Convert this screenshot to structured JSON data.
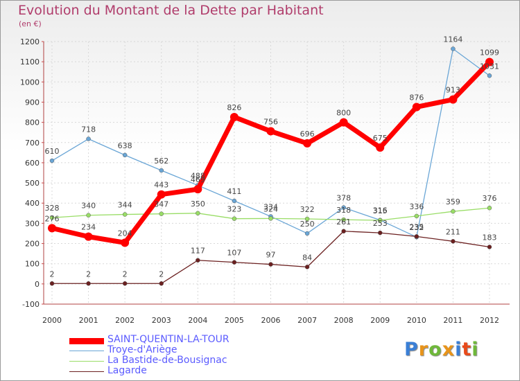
{
  "title": "Evolution du Montant de la Dette par Habitant",
  "subtitle": "(en €)",
  "logo": "Proxiti",
  "chart_data": {
    "type": "line",
    "x": [
      "2000",
      "2001",
      "2002",
      "2003",
      "2004",
      "2005",
      "2006",
      "2007",
      "2008",
      "2009",
      "2010",
      "2011",
      "2012"
    ],
    "ylim": [
      -100,
      1200
    ],
    "yticks": [
      -100,
      0,
      100,
      200,
      300,
      400,
      500,
      600,
      700,
      800,
      900,
      1000,
      1100,
      1200
    ],
    "grid": true,
    "legend_position": "bottom-left",
    "series": [
      {
        "name": "SAINT-QUENTIN-LA-TOUR",
        "color": "#ff0000",
        "values": [
          276,
          234,
          204,
          443,
          469,
          826,
          756,
          696,
          800,
          675,
          876,
          913,
          1099
        ]
      },
      {
        "name": "Troye-d'Ariège",
        "color": "#6aa6d6",
        "values": [
          610,
          718,
          638,
          562,
          488,
          411,
          334,
          250,
          378,
          316,
          232,
          1164,
          1031
        ]
      },
      {
        "name": "La Bastide-de-Bousignac",
        "color": "#99dd66",
        "values": [
          328,
          340,
          344,
          347,
          350,
          323,
          324,
          322,
          318,
          315,
          336,
          359,
          376
        ]
      },
      {
        "name": "Lagarde",
        "color": "#6b2020",
        "values": [
          2,
          2,
          2,
          2,
          117,
          107,
          97,
          84,
          261,
          253,
          235,
          211,
          183
        ]
      }
    ]
  }
}
